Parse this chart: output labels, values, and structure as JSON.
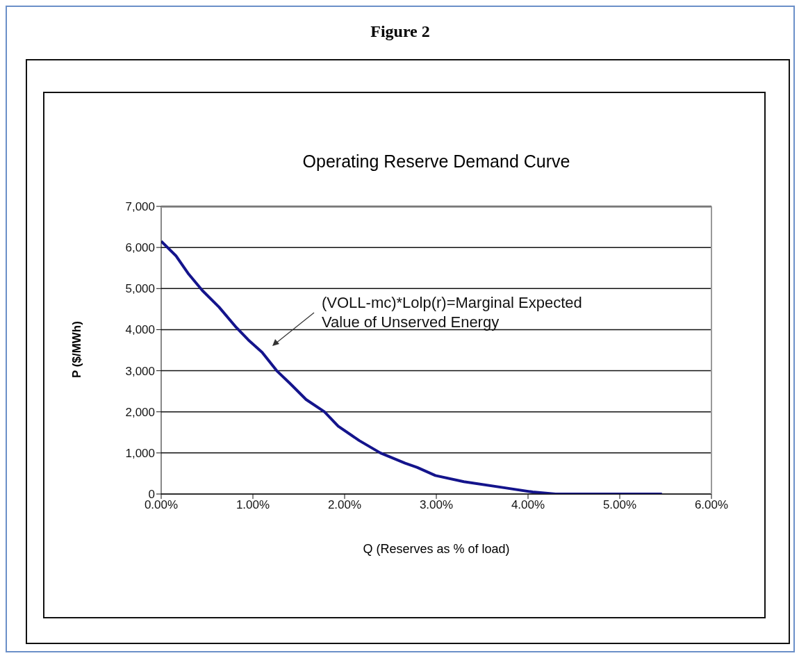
{
  "chart_data": {
    "type": "line",
    "title": "Figure 2",
    "subtitle": "Operating Reserve Demand Curve",
    "xlabel": "Q (Reserves as % of load)",
    "ylabel": "P ($/MWh)",
    "x": [
      0.0,
      0.16,
      0.3,
      0.45,
      0.63,
      0.82,
      0.95,
      1.1,
      1.26,
      1.4,
      1.58,
      1.78,
      1.93,
      2.16,
      2.39,
      2.66,
      2.79,
      2.99,
      3.3,
      3.75,
      4.05,
      4.3,
      4.98,
      5.46
    ],
    "series": [
      {
        "color": "#14148c",
        "values": [
          6150,
          5800,
          5350,
          4950,
          4550,
          4050,
          3750,
          3450,
          3000,
          2700,
          2300,
          2000,
          1650,
          1300,
          1000,
          750,
          650,
          450,
          300,
          150,
          50,
          0,
          0,
          0
        ]
      }
    ],
    "xlim": [
      0,
      6
    ],
    "xticks": [
      {
        "value": 0,
        "label": "0.00%"
      },
      {
        "value": 1,
        "label": "1.00%"
      },
      {
        "value": 2,
        "label": "2.00%"
      },
      {
        "value": 3,
        "label": "3.00%"
      },
      {
        "value": 4,
        "label": "4.00%"
      },
      {
        "value": 5,
        "label": "5.00%"
      },
      {
        "value": 6,
        "label": "6.00%"
      }
    ],
    "ylim": [
      0,
      7000
    ],
    "yticks": [
      0,
      {
        "value": 1000,
        "label": "1,000"
      },
      {
        "value": 2000,
        "label": "2,000"
      },
      {
        "value": 3000,
        "label": "3,000"
      },
      {
        "value": 4000,
        "label": "4,000"
      },
      {
        "value": 5000,
        "label": "5,000"
      },
      {
        "value": 6000,
        "label": "6,000"
      },
      {
        "value": 7000,
        "label": "7,000"
      }
    ],
    "grid": "y",
    "marker": "none",
    "line_style": "solid",
    "legend": false,
    "annotations": [
      "(VOLL-mc)*Lolp(r)=Marginal Expected\nValue of Unserved Energy"
    ]
  }
}
